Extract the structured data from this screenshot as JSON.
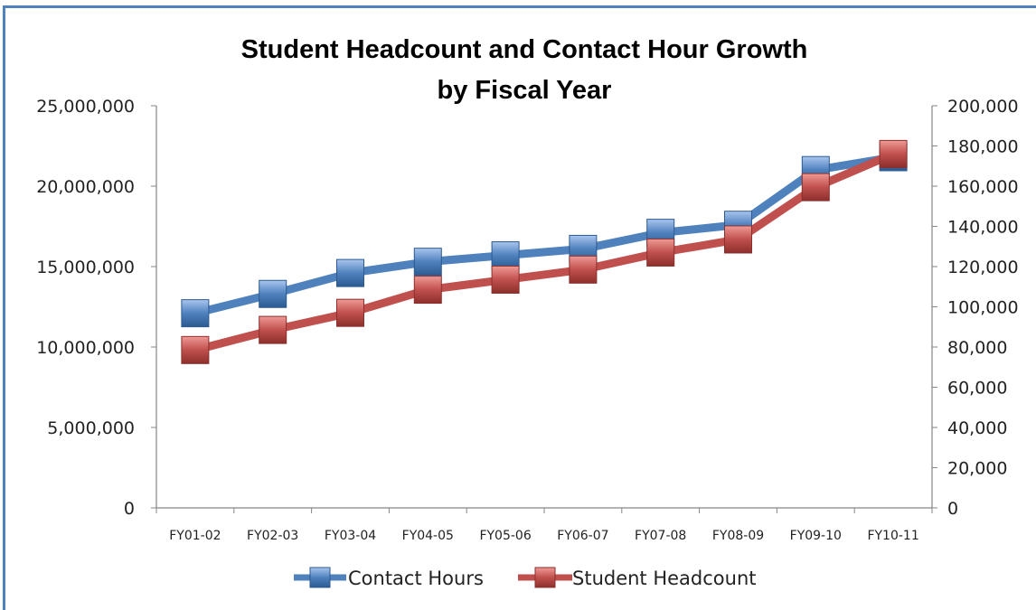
{
  "chart_data": {
    "type": "line",
    "title": "Student Headcount and Contact Hour Growth",
    "subtitle": "by Fiscal Year",
    "categories": [
      "FY01-02",
      "FY02-03",
      "FY03-04",
      "FY04-05",
      "FY05-06",
      "FY06-07",
      "FY07-08",
      "FY08-09",
      "FY09-10",
      "FY10-11"
    ],
    "series": [
      {
        "name": "Contact Hours",
        "axis": "left",
        "color": "#4f81bd",
        "values": [
          12100000,
          13300000,
          14600000,
          15300000,
          15700000,
          16100000,
          17100000,
          17600000,
          21000000,
          21800000
        ]
      },
      {
        "name": "Student Headcount",
        "axis": "right",
        "color": "#c0504d",
        "values": [
          78500,
          88500,
          97000,
          108500,
          113500,
          118500,
          127000,
          133500,
          159500,
          176000
        ]
      }
    ],
    "left_axis": {
      "ylim": [
        0,
        25000000
      ],
      "ticks": [
        "0",
        "5,000,000",
        "10,000,000",
        "15,000,000",
        "20,000,000",
        "25,000,000"
      ]
    },
    "right_axis": {
      "ylim": [
        0,
        200000
      ],
      "ticks": [
        "0",
        "20,000",
        "40,000",
        "60,000",
        "80,000",
        "100,000",
        "120,000",
        "140,000",
        "160,000",
        "180,000",
        "200,000"
      ]
    },
    "grid": false,
    "legend_position": "bottom"
  }
}
